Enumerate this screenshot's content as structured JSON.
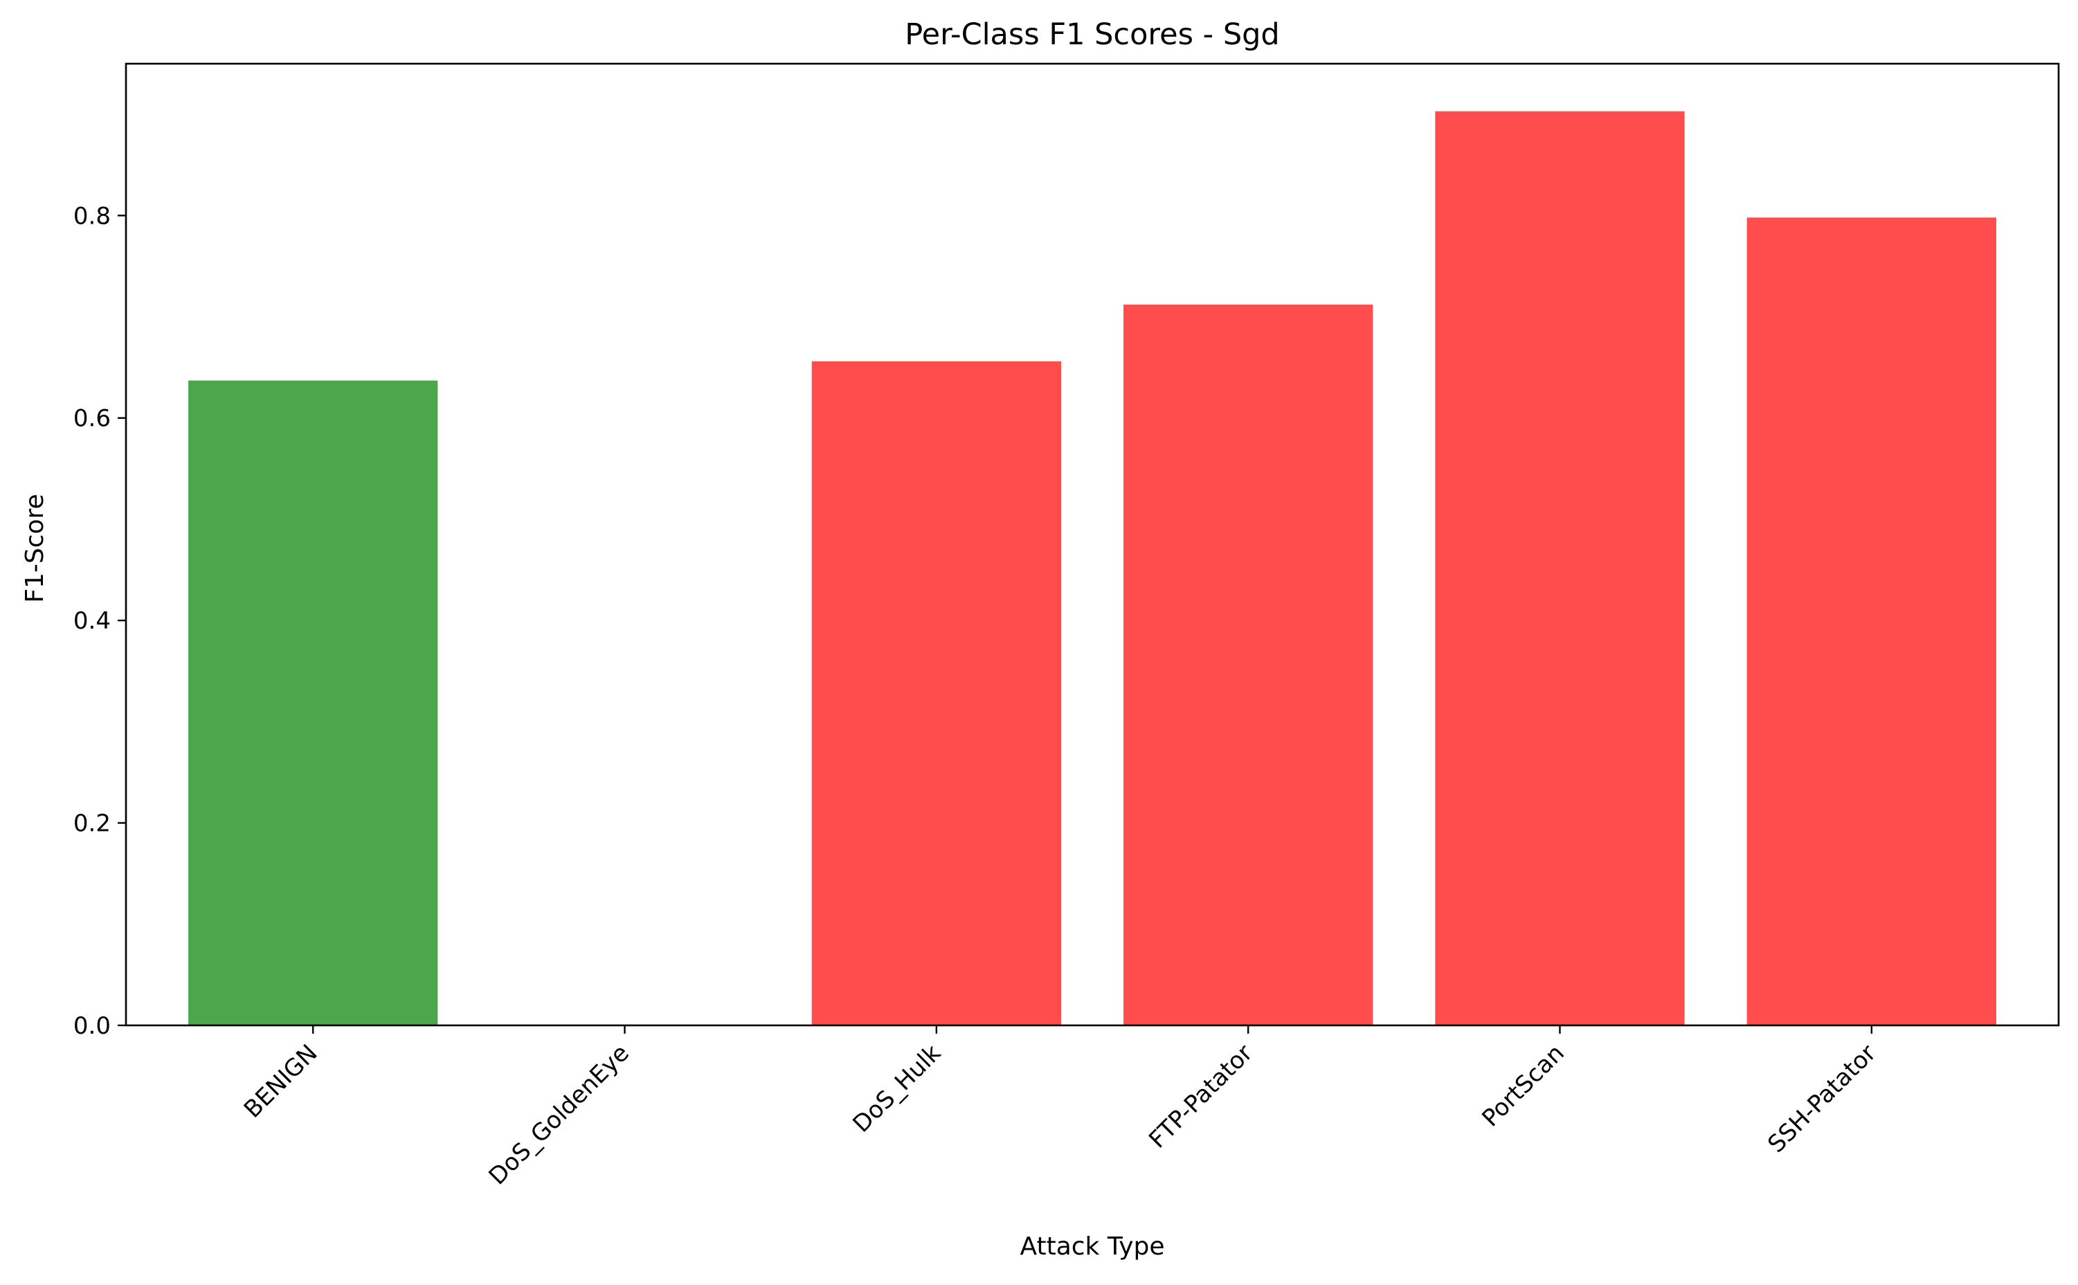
{
  "chart_data": {
    "type": "bar",
    "title": "Per-Class F1 Scores - Sgd",
    "xlabel": "Attack Type",
    "ylabel": "F1-Score",
    "categories": [
      "BENIGN",
      "DoS_GoldenEye",
      "DoS_Hulk",
      "FTP-Patator",
      "PortScan",
      "SSH-Patator"
    ],
    "values": [
      0.637,
      0.0,
      0.656,
      0.712,
      0.903,
      0.798
    ],
    "bar_colors": [
      "#4ca64c",
      "#ff4d4d",
      "#ff4d4d",
      "#ff4d4d",
      "#ff4d4d",
      "#ff4d4d"
    ],
    "ylim": [
      0,
      0.95
    ],
    "yticks": [
      "0.0",
      "0.2",
      "0.4",
      "0.6",
      "0.8"
    ],
    "grid": false,
    "legend": null
  }
}
